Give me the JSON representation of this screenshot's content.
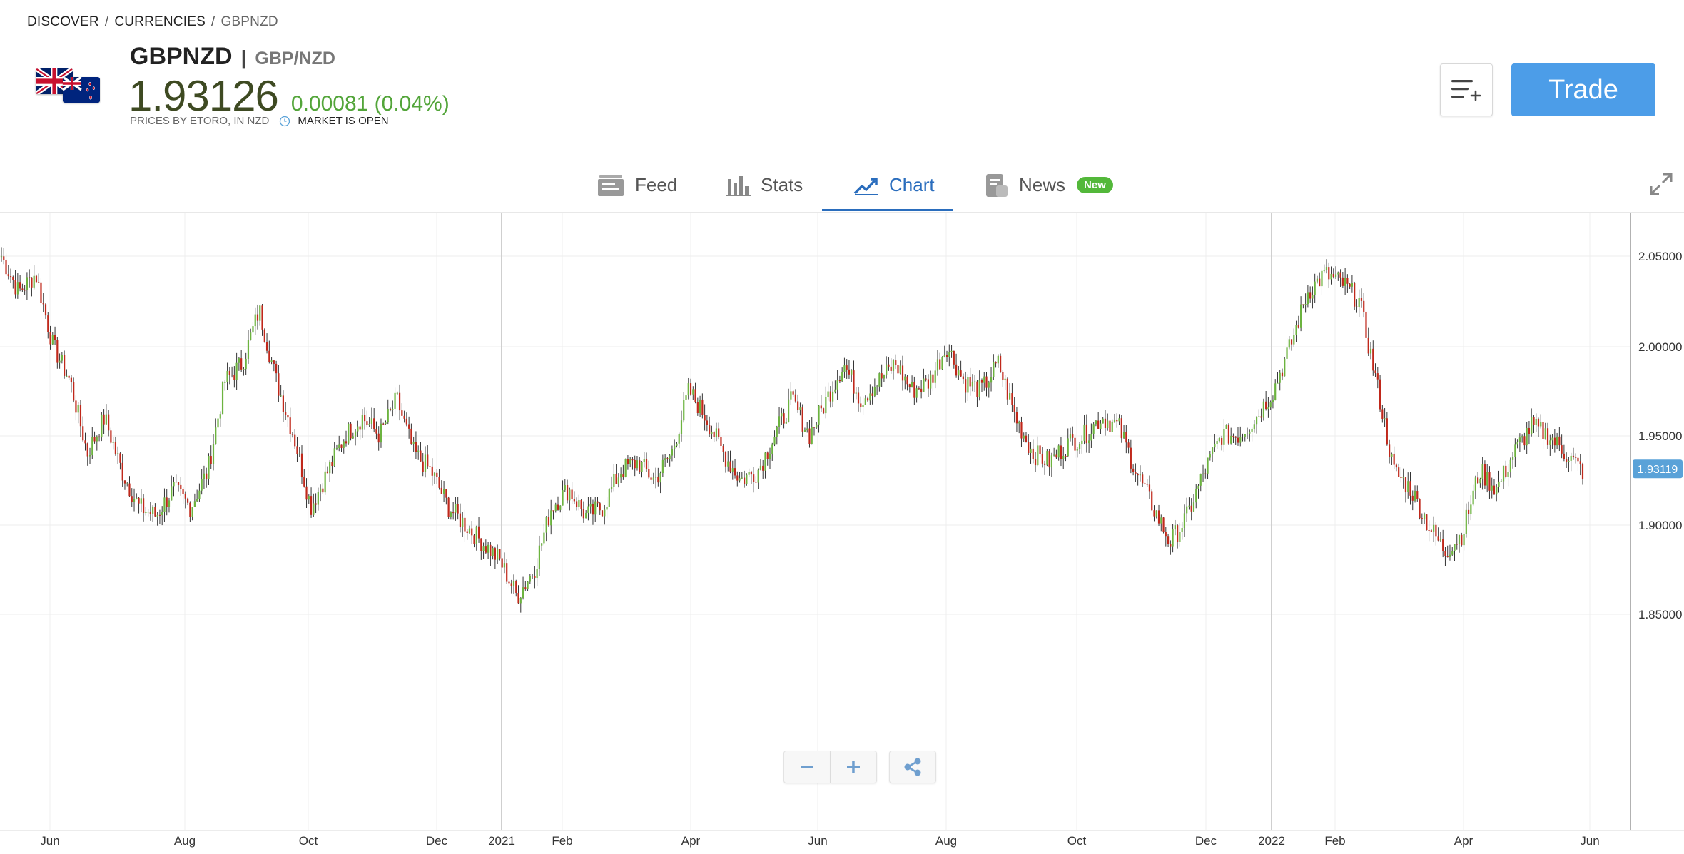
{
  "breadcrumb": {
    "items": [
      "DISCOVER",
      "CURRENCIES"
    ],
    "current": "GBPNZD"
  },
  "instrument": {
    "symbol": "GBPNZD",
    "pair": "GBP/NZD",
    "price": "1.93126",
    "change": "0.00081 (0.04%)",
    "prices_by": "PRICES BY ETORO, IN NZD",
    "market_status": "MARKET IS OPEN",
    "flags": [
      "uk-flag-icon",
      "nz-flag-icon"
    ]
  },
  "actions": {
    "trade_label": "Trade"
  },
  "tabs": [
    {
      "label": "Feed",
      "icon": "feed-icon"
    },
    {
      "label": "Stats",
      "icon": "stats-icon"
    },
    {
      "label": "Chart",
      "icon": "chart-icon",
      "active": true
    },
    {
      "label": "News",
      "icon": "news-icon",
      "badge": "New"
    }
  ],
  "colors": {
    "up": "#6cb33f",
    "down": "#c0281b",
    "accent": "#2a6dbd",
    "trade": "#4c9de8",
    "price": "#3e4a22",
    "change": "#53a53a",
    "last_price_bg": "#5aa2d8"
  },
  "chart_data": {
    "type": "candlestick",
    "x_ticks": [
      "Jun",
      "Aug",
      "Oct",
      "Dec",
      "2021",
      "Feb",
      "Apr",
      "Jun",
      "Aug",
      "Oct",
      "Dec",
      "2022",
      "Feb",
      "Apr",
      "Jun"
    ],
    "y_ticks": [
      "2.05000",
      "2.00000",
      "1.95000",
      "1.90000",
      "1.85000"
    ],
    "ylim": [
      1.85,
      2.05
    ],
    "last_price": "1.93119",
    "path": [
      2.05,
      2.03,
      2.04,
      2.0,
      1.98,
      1.94,
      1.96,
      1.93,
      1.91,
      1.905,
      1.92,
      1.91,
      1.93,
      1.98,
      1.99,
      2.02,
      1.98,
      1.95,
      1.91,
      1.93,
      1.95,
      1.96,
      1.95,
      1.97,
      1.94,
      1.93,
      1.91,
      1.9,
      1.89,
      1.88,
      1.86,
      1.875,
      1.91,
      1.92,
      1.905,
      1.91,
      1.93,
      1.935,
      1.925,
      1.94,
      1.975,
      1.96,
      1.94,
      1.925,
      1.93,
      1.95,
      1.97,
      1.95,
      1.97,
      1.99,
      1.97,
      1.98,
      1.99,
      1.975,
      1.98,
      2.0,
      1.98,
      1.975,
      1.99,
      1.96,
      1.94,
      1.935,
      1.945,
      1.95,
      1.96,
      1.955,
      1.93,
      1.91,
      1.89,
      1.905,
      1.93,
      1.95,
      1.95,
      1.96,
      1.975,
      2.0,
      2.03,
      2.04,
      2.035,
      2.025,
      1.98,
      1.93,
      1.92,
      1.9,
      1.885,
      1.895,
      1.93,
      1.92,
      1.94,
      1.955,
      1.95,
      1.94,
      1.93
    ]
  }
}
